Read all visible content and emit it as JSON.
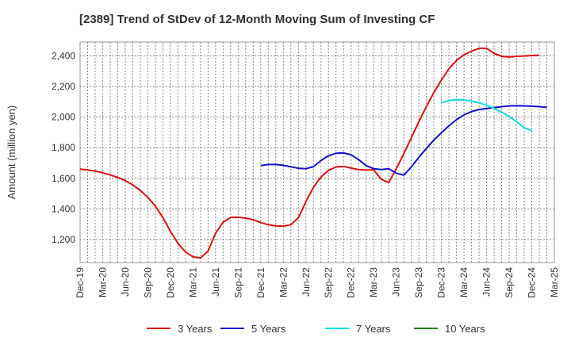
{
  "chart_data": {
    "type": "line",
    "title": "[2389]  Trend of StDev of 12-Month Moving Sum of Investing CF",
    "ylabel": "Amount (million yen)",
    "xlabel": "",
    "x_tick_labels": [
      "Dec-19",
      "Mar-20",
      "Jun-20",
      "Sep-20",
      "Dec-20",
      "Mar-21",
      "Jun-21",
      "Sep-21",
      "Dec-21",
      "Mar-22",
      "Jun-22",
      "Sep-22",
      "Dec-22",
      "Mar-23",
      "Jun-23",
      "Sep-23",
      "Dec-23",
      "Mar-24",
      "Jun-24",
      "Sep-24",
      "Dec-24",
      "Mar-25"
    ],
    "y_ticks": [
      1200,
      1400,
      1600,
      1800,
      2000,
      2200,
      2400
    ],
    "y_tick_labels": [
      "1,200",
      "1,400",
      "1,600",
      "1,800",
      "2,000",
      "2,200",
      "2,400"
    ],
    "ylim": [
      1050,
      2490
    ],
    "grid": true,
    "legend_position": "bottom",
    "series": [
      {
        "name": "3 Years",
        "color": "#dd1111",
        "start_month": 0,
        "values": [
          1660,
          1655,
          1647,
          1636,
          1622,
          1606,
          1585,
          1557,
          1521,
          1476,
          1418,
          1343,
          1254,
          1175,
          1119,
          1087,
          1080,
          1125,
          1242,
          1313,
          1345,
          1346,
          1340,
          1329,
          1311,
          1297,
          1290,
          1288,
          1297,
          1343,
          1448,
          1542,
          1609,
          1652,
          1674,
          1678,
          1667,
          1657,
          1654,
          1656,
          1594,
          1572,
          1663,
          1761,
          1865,
          1970,
          2069,
          2160,
          2242,
          2316,
          2370,
          2407,
          2430,
          2449,
          2449,
          2416,
          2396,
          2392,
          2397,
          2399,
          2402,
          2404
        ]
      },
      {
        "name": "5 Years",
        "color": "#1111cc",
        "start_month": 24,
        "values": [
          1683,
          1690,
          1690,
          1685,
          1675,
          1666,
          1663,
          1676,
          1716,
          1747,
          1764,
          1766,
          1754,
          1722,
          1683,
          1663,
          1657,
          1663,
          1634,
          1621,
          1674,
          1737,
          1795,
          1850,
          1898,
          1943,
          1983,
          2014,
          2036,
          2049,
          2056,
          2062,
          2068,
          2073,
          2074,
          2073,
          2071,
          2068,
          2063
        ]
      },
      {
        "name": "7 Years",
        "color": "#11dddd",
        "start_month": 48,
        "values": [
          2093,
          2107,
          2113,
          2112,
          2104,
          2093,
          2077,
          2057,
          2032,
          2003,
          1969,
          1930,
          1912
        ]
      },
      {
        "name": "10 Years",
        "color": "#118811",
        "start_month": 0,
        "values": []
      }
    ]
  }
}
